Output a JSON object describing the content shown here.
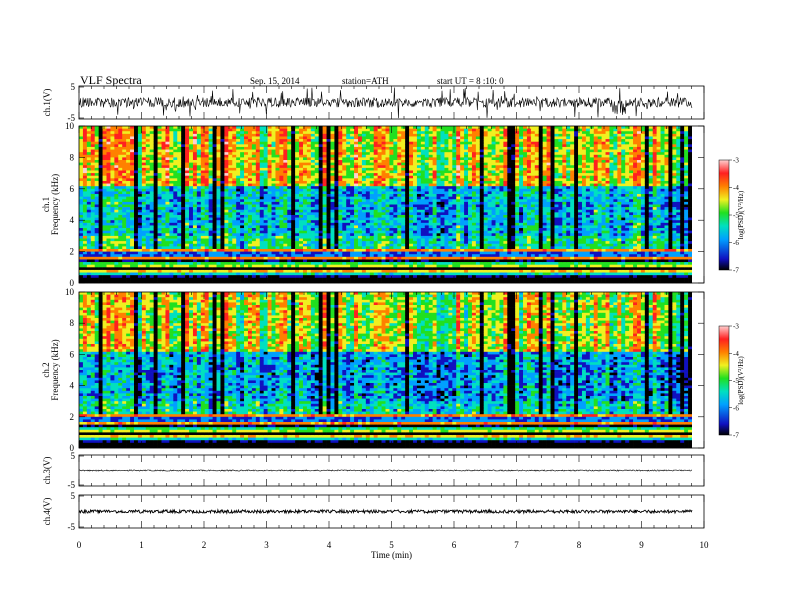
{
  "header": {
    "title": "VLF Spectra",
    "date": "Sep. 15, 2014",
    "station": "station=ATH",
    "start": "start UT = 8 :10: 0"
  },
  "chart_data": [
    {
      "type": "line",
      "panel": "ch1-waveform",
      "ylabel": "ch.1(V)",
      "ylim": [
        -5,
        5
      ],
      "y_ticks": [
        "5",
        "-5"
      ],
      "xlim": [
        0,
        10
      ],
      "trace": "dense black waveform oscillating roughly between -2 and 2 V with frequent spikes",
      "color": "#000000"
    },
    {
      "type": "heatmap",
      "panel": "ch1-spectrogram",
      "ylabel": "ch.1\nFrequency (kHz)",
      "ylim": [
        0,
        10
      ],
      "y_ticks": [
        "0",
        "2",
        "4",
        "6",
        "8",
        "10"
      ],
      "xlim": [
        0,
        9.8
      ],
      "colorbar": {
        "label": "log(PSD)(V²/Hz)",
        "range": [
          -7,
          -3
        ],
        "ticks": [
          "-3",
          "-4",
          "-5",
          "-6",
          "-7"
        ],
        "colors": [
          "#000000",
          "#1010c0",
          "#00a0ff",
          "#00e0c0",
          "#20e020",
          "#f0f020",
          "#ff8000",
          "#ff2020",
          "#ffd0d0"
        ]
      }
    },
    {
      "type": "heatmap",
      "panel": "ch2-spectrogram",
      "ylabel": "ch.2\nFrequency (kHz)",
      "ylim": [
        0,
        10
      ],
      "y_ticks": [
        "0",
        "2",
        "4",
        "6",
        "8",
        "10"
      ],
      "xlim": [
        0,
        9.8
      ],
      "colorbar": {
        "label": "log(PSD)(V²/Hz)",
        "range": [
          -7,
          -3
        ],
        "ticks": [
          "-3",
          "-4",
          "-5",
          "-6",
          "-7"
        ]
      }
    },
    {
      "type": "line",
      "panel": "ch3-waveform",
      "ylabel": "ch.3(V)",
      "ylim": [
        -5,
        5
      ],
      "y_ticks": [
        "5",
        "-5"
      ],
      "level": 0,
      "color": "#000000"
    },
    {
      "type": "line",
      "panel": "ch4-waveform",
      "ylabel": "ch.4(V)",
      "ylim": [
        -5,
        5
      ],
      "y_ticks": [
        "5",
        "-5"
      ],
      "level": 0,
      "color": "#000000"
    }
  ],
  "xaxis": {
    "label": "Time (min)",
    "ticks": [
      "0",
      "1",
      "2",
      "3",
      "4",
      "5",
      "6",
      "7",
      "8",
      "9",
      "10"
    ],
    "range": [
      0,
      10
    ]
  }
}
